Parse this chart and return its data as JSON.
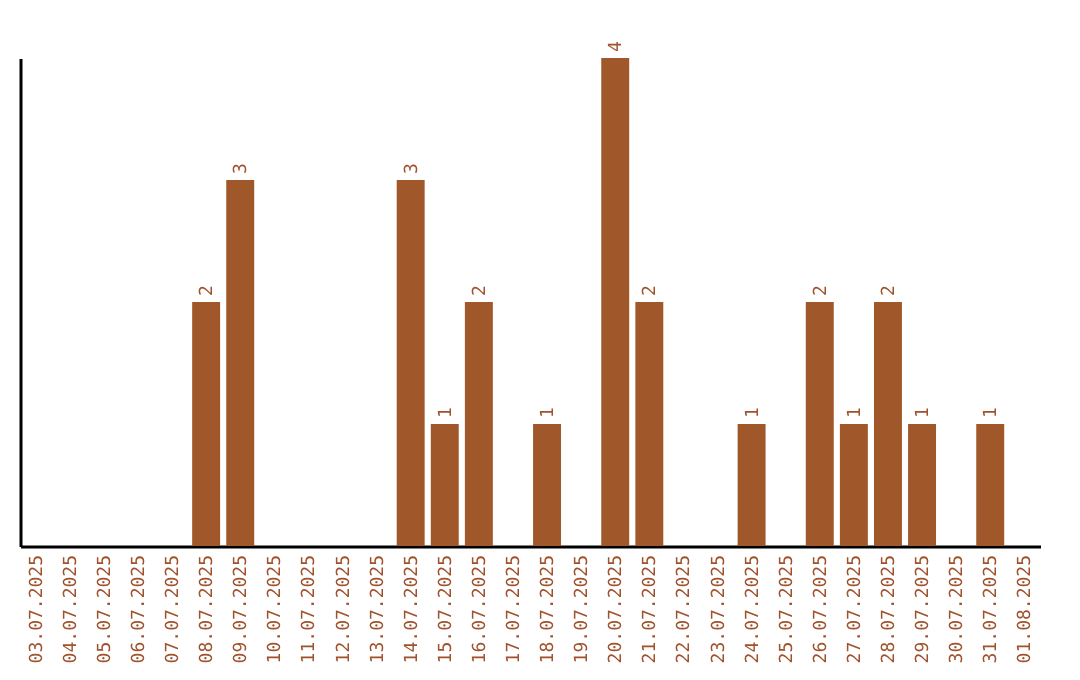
{
  "chart_data": {
    "type": "bar",
    "categories": [
      "03.07.2025",
      "04.07.2025",
      "05.07.2025",
      "06.07.2025",
      "07.07.2025",
      "08.07.2025",
      "09.07.2025",
      "10.07.2025",
      "11.07.2025",
      "12.07.2025",
      "13.07.2025",
      "14.07.2025",
      "15.07.2025",
      "16.07.2025",
      "17.07.2025",
      "18.07.2025",
      "19.07.2025",
      "20.07.2025",
      "21.07.2025",
      "22.07.2025",
      "23.07.2025",
      "24.07.2025",
      "25.07.2025",
      "26.07.2025",
      "27.07.2025",
      "28.07.2025",
      "29.07.2025",
      "30.07.2025",
      "31.07.2025",
      "01.08.2025"
    ],
    "values": [
      0,
      0,
      0,
      0,
      0,
      2,
      3,
      0,
      0,
      0,
      0,
      3,
      1,
      2,
      0,
      1,
      0,
      4,
      2,
      0,
      0,
      1,
      0,
      2,
      1,
      2,
      1,
      0,
      1,
      0
    ],
    "value_labels": [
      null,
      null,
      null,
      null,
      null,
      "2",
      "3",
      null,
      null,
      null,
      null,
      "3",
      "1",
      "2",
      null,
      "1",
      null,
      "4",
      "2",
      null,
      null,
      "1",
      null,
      "2",
      "1",
      "2",
      "1",
      null,
      "1",
      null
    ],
    "color": "#a0582a",
    "grid": false,
    "tick_labels": "x"
  }
}
